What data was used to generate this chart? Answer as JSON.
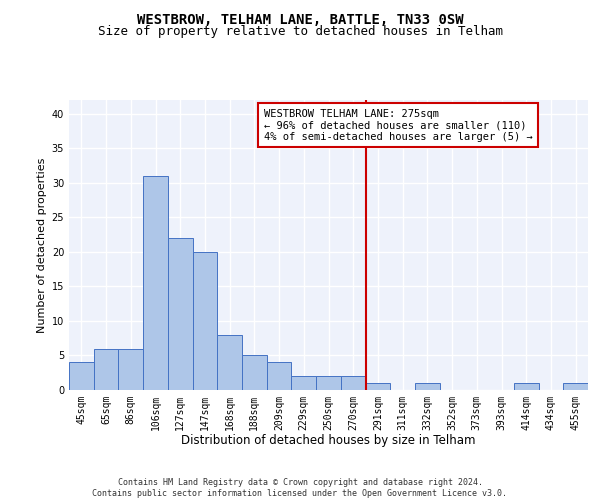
{
  "title": "WESTBROW, TELHAM LANE, BATTLE, TN33 0SW",
  "subtitle": "Size of property relative to detached houses in Telham",
  "xlabel": "Distribution of detached houses by size in Telham",
  "ylabel": "Number of detached properties",
  "bar_labels": [
    "45sqm",
    "65sqm",
    "86sqm",
    "106sqm",
    "127sqm",
    "147sqm",
    "168sqm",
    "188sqm",
    "209sqm",
    "229sqm",
    "250sqm",
    "270sqm",
    "291sqm",
    "311sqm",
    "332sqm",
    "352sqm",
    "373sqm",
    "393sqm",
    "414sqm",
    "434sqm",
    "455sqm"
  ],
  "bar_values": [
    4,
    6,
    6,
    31,
    22,
    20,
    8,
    5,
    4,
    2,
    2,
    2,
    1,
    0,
    1,
    0,
    0,
    0,
    1,
    0,
    1
  ],
  "bar_color": "#aec6e8",
  "bar_edge_color": "#4472c4",
  "bg_color": "#eef2fb",
  "grid_color": "#ffffff",
  "vline_x_index": 11.5,
  "vline_color": "#cc0000",
  "annotation_text": "WESTBROW TELHAM LANE: 275sqm\n← 96% of detached houses are smaller (110)\n4% of semi-detached houses are larger (5) →",
  "annotation_box_color": "#cc0000",
  "ylim": [
    0,
    42
  ],
  "yticks": [
    0,
    5,
    10,
    15,
    20,
    25,
    30,
    35,
    40
  ],
  "footer": "Contains HM Land Registry data © Crown copyright and database right 2024.\nContains public sector information licensed under the Open Government Licence v3.0.",
  "title_fontsize": 10,
  "subtitle_fontsize": 9,
  "xlabel_fontsize": 8.5,
  "ylabel_fontsize": 8,
  "tick_fontsize": 7,
  "annotation_fontsize": 7.5,
  "footer_fontsize": 6
}
